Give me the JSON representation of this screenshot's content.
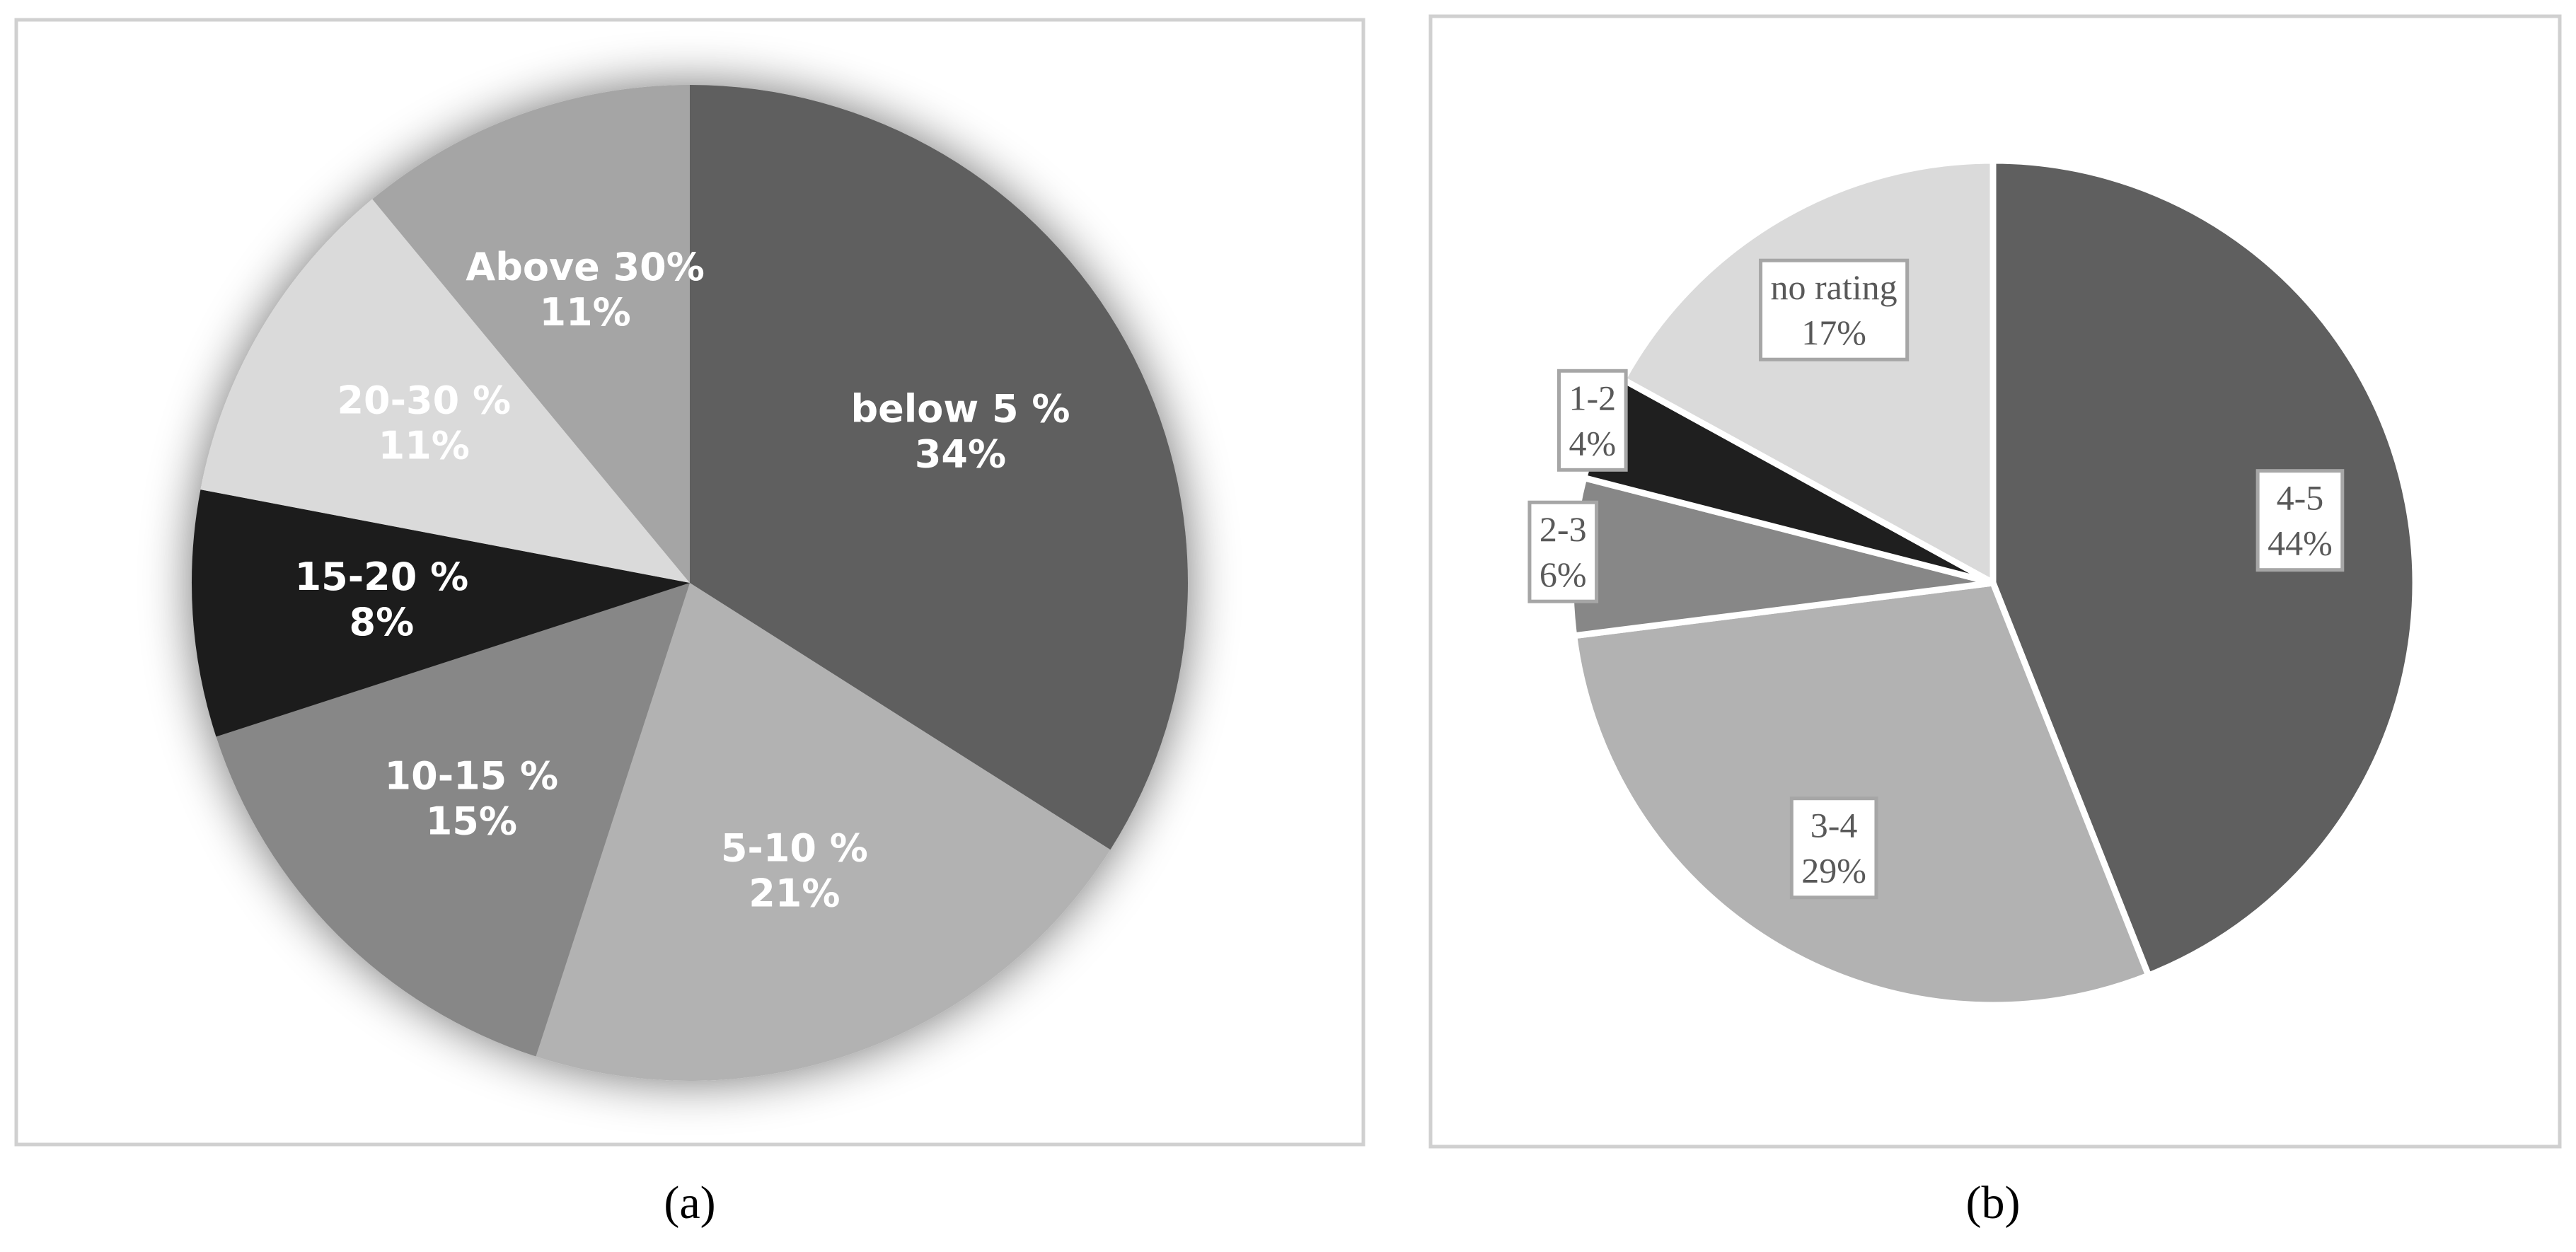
{
  "chart_data": [
    {
      "type": "pie",
      "title": "(a)",
      "categories": [
        "below 5 %",
        "5-10 %",
        "10-15 %",
        "15-20 %",
        "20-30 %",
        "Above 30%"
      ],
      "values": [
        34,
        21,
        15,
        8,
        11,
        11
      ],
      "value_labels": [
        "34%",
        "21%",
        "15%",
        "8%",
        "11%",
        "11%"
      ],
      "colors": [
        "#5f5f5f",
        "#b2b2b2",
        "#878787",
        "#1f1f1f",
        "#dadada",
        "#a5a5a5"
      ]
    },
    {
      "type": "pie",
      "title": "(b)",
      "categories": [
        "4-5",
        "3-4",
        "2-3",
        "1-2",
        "no rating"
      ],
      "values": [
        44,
        29,
        6,
        4,
        17
      ],
      "value_labels": [
        "44%",
        "29%",
        "6%",
        "4%",
        "17%"
      ],
      "colors": [
        "#5f5f5f",
        "#b2b2b2",
        "#878787",
        "#1f1f1f",
        "#dadada"
      ]
    }
  ]
}
